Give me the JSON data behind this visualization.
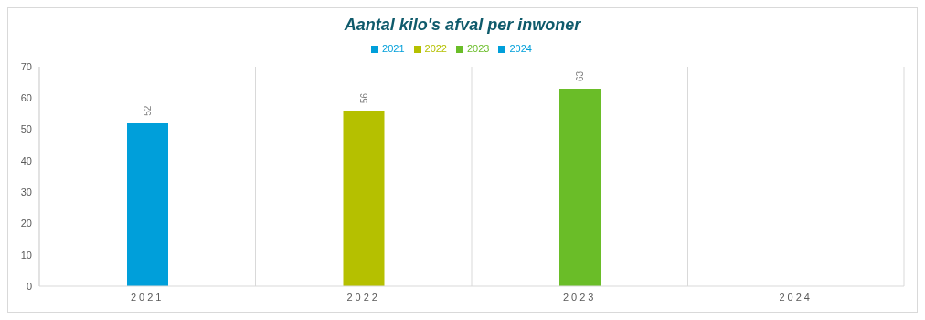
{
  "chart_data": {
    "type": "bar",
    "title": "Aantal kilo's afval per inwoner",
    "categories": [
      "2021",
      "2022",
      "2023",
      "2024"
    ],
    "series": [
      {
        "name": "2021",
        "color": "#009fda",
        "values": [
          52,
          null,
          null,
          null
        ]
      },
      {
        "name": "2022",
        "color": "#b5c000",
        "values": [
          null,
          56,
          null,
          null
        ]
      },
      {
        "name": "2023",
        "color": "#6abd28",
        "values": [
          null,
          null,
          63,
          null
        ]
      },
      {
        "name": "2024",
        "color": "#009fda",
        "values": [
          null,
          null,
          null,
          null
        ]
      }
    ],
    "stacked": true,
    "ylim": [
      0,
      70
    ],
    "yticks": [
      0,
      10,
      20,
      30,
      40,
      50,
      60,
      70
    ],
    "grid": "x",
    "legend": "top",
    "data_labels": true
  }
}
